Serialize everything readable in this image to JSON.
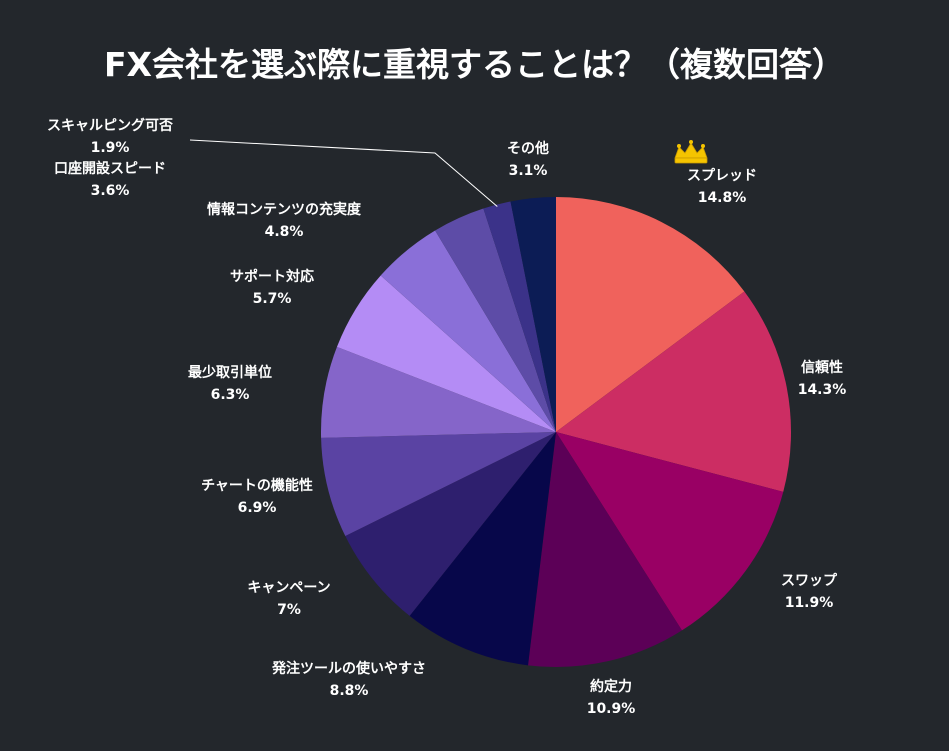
{
  "title": "FX会社を選ぶ際に重視することは？（複数回答）",
  "chart_data": {
    "type": "pie",
    "title": "FX会社を選ぶ際に重視することは？（複数回答）",
    "unit": "%",
    "start": "12 o'clock, clockwise",
    "top_item_marker": "crown-icon",
    "slices": [
      {
        "label": "スプレッド",
        "value": 14.8,
        "display": "14.8%",
        "color": "#f0625c"
      },
      {
        "label": "信頼性",
        "value": 14.3,
        "display": "14.3%",
        "color": "#cc2d63"
      },
      {
        "label": "スワップ",
        "value": 11.9,
        "display": "11.9%",
        "color": "#990064"
      },
      {
        "label": "約定力",
        "value": 10.9,
        "display": "10.9%",
        "color": "#5c0057"
      },
      {
        "label": "発注ツールの使いやすさ",
        "value": 8.8,
        "display": "8.8%",
        "color": "#07074a"
      },
      {
        "label": "キャンペーン",
        "value": 7.0,
        "display": "7%",
        "color": "#2e1f6e"
      },
      {
        "label": "チャートの機能性",
        "value": 6.9,
        "display": "6.9%",
        "color": "#5a43a3"
      },
      {
        "label": "最少取引単位",
        "value": 6.3,
        "display": "6.3%",
        "color": "#8565c9"
      },
      {
        "label": "サポート対応",
        "value": 5.7,
        "display": "5.7%",
        "color": "#b48cf5"
      },
      {
        "label": "情報コンテンツの充実度",
        "value": 4.8,
        "display": "4.8%",
        "color": "#8a6fd8"
      },
      {
        "label": "口座開設スピード",
        "value": 3.6,
        "display": "3.6%",
        "color": "#5d4ca7"
      },
      {
        "label": "スキャルピング可否",
        "value": 1.9,
        "display": "1.9%",
        "color": "#3b3289"
      },
      {
        "label": "その他",
        "value": 3.1,
        "display": "3.1%",
        "color": "#0c1c55"
      }
    ]
  }
}
